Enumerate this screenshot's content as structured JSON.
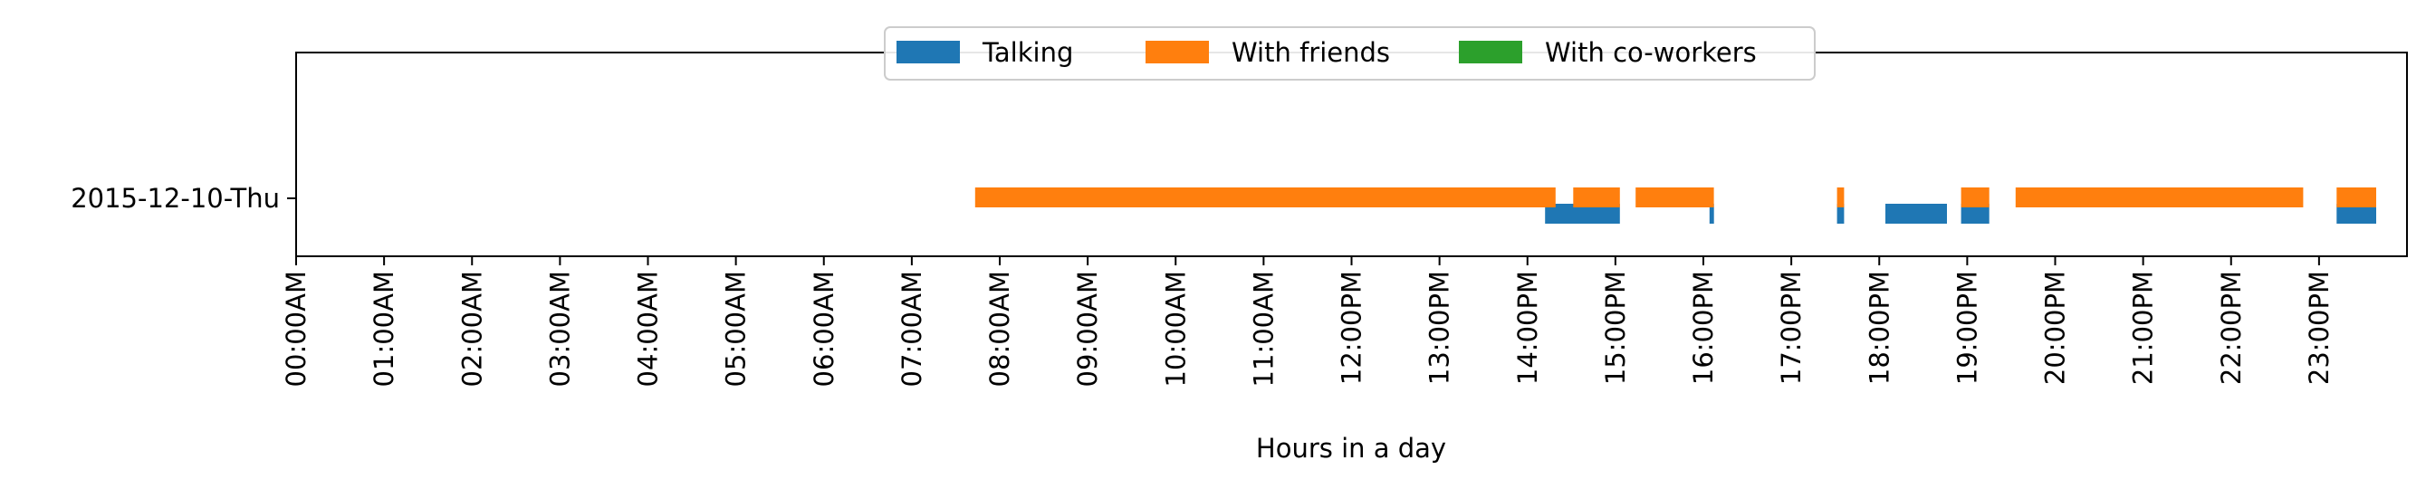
{
  "chart_data": {
    "type": "bar",
    "orientation": "horizontal-timeline",
    "xlabel": "Hours in a day",
    "ylabel": "",
    "xlim": [
      0,
      24
    ],
    "categories": [
      "2015-12-10-Thu"
    ],
    "x_tick_labels": [
      "00:00AM",
      "01:00AM",
      "02:00AM",
      "03:00AM",
      "04:00AM",
      "05:00AM",
      "06:00AM",
      "07:00AM",
      "08:00AM",
      "09:00AM",
      "10:00AM",
      "11:00AM",
      "12:00PM",
      "13:00PM",
      "14:00PM",
      "15:00PM",
      "16:00PM",
      "17:00PM",
      "18:00PM",
      "19:00PM",
      "20:00PM",
      "21:00PM",
      "22:00PM",
      "23:00PM"
    ],
    "legend_position": "top-center",
    "grid": false,
    "series": [
      {
        "name": "Talking",
        "color": "#1f77b4",
        "intervals": [
          [
            14.2,
            15.05
          ],
          [
            16.07,
            16.12
          ],
          [
            17.52,
            17.6
          ],
          [
            18.07,
            18.77
          ],
          [
            18.93,
            19.25
          ],
          [
            23.2,
            23.65
          ]
        ]
      },
      {
        "name": "With friends",
        "color": "#ff7f0e",
        "intervals": [
          [
            7.72,
            14.32
          ],
          [
            14.52,
            15.05
          ],
          [
            15.23,
            16.12
          ],
          [
            17.52,
            17.6
          ],
          [
            18.93,
            19.25
          ],
          [
            19.55,
            22.82
          ],
          [
            23.2,
            23.65
          ]
        ]
      },
      {
        "name": "With co-workers",
        "color": "#2ca02c",
        "intervals": []
      }
    ]
  }
}
